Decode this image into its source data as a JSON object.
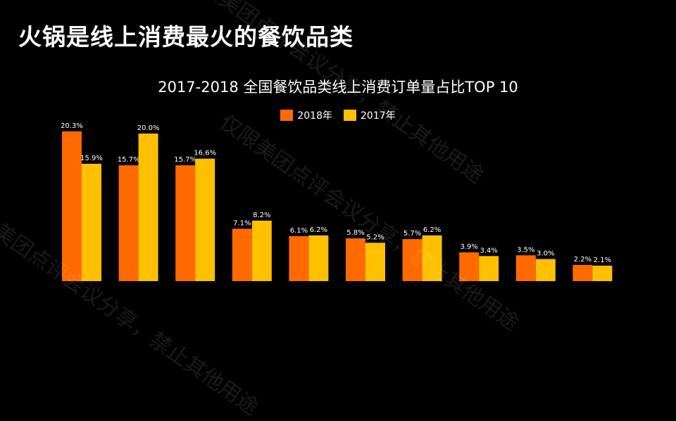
{
  "page_title": "火锅是线上消费最火的餐饮品类",
  "watermark": "仅限美团点评会议分享，禁止其他用途",
  "colors": {
    "series_2018": "#FF6A00",
    "series_2017": "#FFC000",
    "background": "#000000"
  },
  "chart_data": {
    "type": "bar",
    "title": "2017-2018 全国餐饮品类线上消费订单量占比TOP 10",
    "xlabel": "",
    "ylabel": "",
    "ylim": [
      0,
      22
    ],
    "grid": false,
    "legend_position": "top-center",
    "categories": [
      "",
      "",
      "",
      "",
      "",
      "",
      "",
      "",
      "",
      ""
    ],
    "series": [
      {
        "name": "2018年",
        "values": [
          20.3,
          15.7,
          15.7,
          7.1,
          6.1,
          5.8,
          5.7,
          3.9,
          3.5,
          2.2
        ],
        "labels": [
          "20.3%",
          "15.7%",
          "15.7%",
          "7.1%",
          "6.1%",
          "5.8%",
          "5.7%",
          "3.9%",
          "3.5%",
          "2.2%"
        ]
      },
      {
        "name": "2017年",
        "values": [
          15.9,
          20.0,
          16.6,
          8.2,
          6.2,
          5.2,
          6.2,
          3.4,
          3.0,
          2.1
        ],
        "labels": [
          "15.9%",
          "20.0%",
          "16.6%",
          "8.2%",
          "6.2%",
          "5.2%",
          "6.2%",
          "3.4%",
          "3.0%",
          "2.1%"
        ]
      }
    ]
  }
}
